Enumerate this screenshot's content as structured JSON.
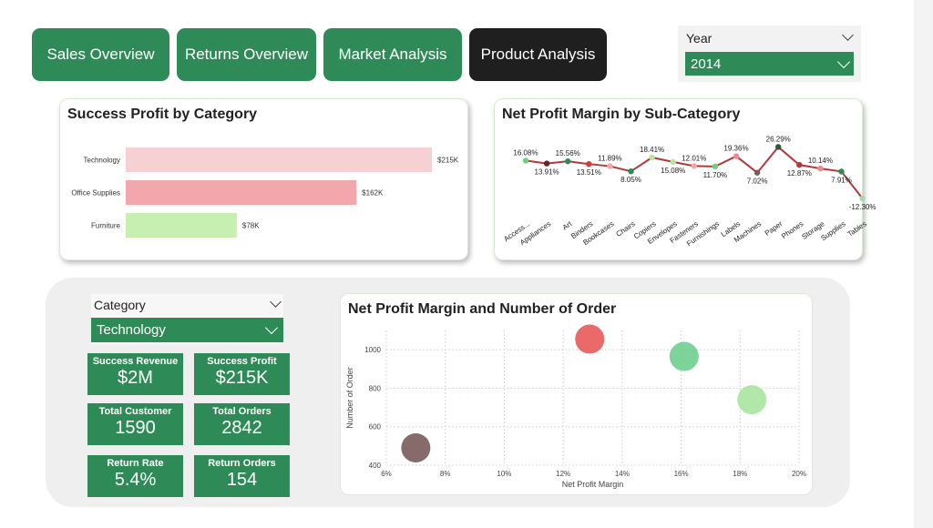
{
  "nav": {
    "tabs": [
      {
        "label": "Sales Overview",
        "active": false
      },
      {
        "label": "Returns Overview",
        "active": false
      },
      {
        "label": "Market Analysis",
        "active": false
      },
      {
        "label": "Product Analysis",
        "active": true
      }
    ]
  },
  "year_slicer": {
    "title": "Year",
    "value": "2014"
  },
  "category_slicer": {
    "title": "Category",
    "value": "Technology"
  },
  "colors": {
    "accent": "#2e8b57",
    "active_tab": "#1f1f1f",
    "line": "#b03a3a"
  },
  "bar_chart": {
    "title": "Success Profit by Category",
    "chart_data": {
      "type": "bar",
      "orientation": "horizontal",
      "categories": [
        "Technology",
        "Office Supplies",
        "Furniture"
      ],
      "values": [
        215,
        162,
        78
      ],
      "value_labels": [
        "$215K",
        "$162K",
        "$78K"
      ],
      "colors": [
        "#f7d0d3",
        "#f2a7ad",
        "#c6efb1"
      ],
      "xlim": [
        0,
        215
      ]
    }
  },
  "line_chart": {
    "title": "Net Profit Margin by Sub-Category",
    "chart_data": {
      "type": "line",
      "categories": [
        "Access...",
        "Appliances",
        "Art",
        "Binders",
        "Bookcases",
        "Chairs",
        "Copiers",
        "Envelopes",
        "Fasteners",
        "Furnishings",
        "Labels",
        "Machines",
        "Paper",
        "Phones",
        "Storage",
        "Supplies",
        "Tables"
      ],
      "values": [
        16.08,
        13.91,
        15.56,
        13.51,
        11.89,
        8.05,
        18.41,
        15.08,
        12.01,
        11.7,
        19.36,
        7.02,
        26.29,
        12.87,
        10.14,
        7.91,
        -12.3
      ],
      "labels": [
        "16.08%",
        "13.91%",
        "15.56%",
        "13.51%",
        "11.89%",
        "8.05%",
        "18.41%",
        "15.08%",
        "12.01%",
        "11.70%",
        "19.36%",
        "7.02%",
        "26.29%",
        "12.87%",
        "10.14%",
        "7.91%",
        "-12.30%"
      ],
      "label_above": [
        true,
        false,
        true,
        false,
        true,
        false,
        true,
        false,
        true,
        false,
        true,
        false,
        true,
        false,
        true,
        false,
        false
      ],
      "point_colors": [
        "#6fcf7f",
        "#6b2222",
        "#2e8b57",
        "#c94040",
        "#f2a7ad",
        "#2e8b57",
        "#b8e6a0",
        "#b8e6a0",
        "#f2a7ad",
        "#6fcf7f",
        "#e88c8c",
        "#7a5a5a",
        "#2a5a3a",
        "#b03a3a",
        "#e88c8c",
        "#2e8b57",
        "#a8d8b0"
      ],
      "ylim": [
        -15,
        30
      ]
    }
  },
  "kpis": [
    {
      "label": "Success Revenue",
      "value": "$2M"
    },
    {
      "label": "Success Profit",
      "value": "$215K"
    },
    {
      "label": "Total Customer",
      "value": "1590"
    },
    {
      "label": "Total Orders",
      "value": "2842"
    },
    {
      "label": "Return Rate",
      "value": "5.4%"
    },
    {
      "label": "Return Orders",
      "value": "154"
    }
  ],
  "scatter": {
    "title": "Net Profit Margin and Number of Order",
    "chart_data": {
      "type": "scatter",
      "xlabel": "Net Profit Margin",
      "ylabel": "Number of Order",
      "xlim": [
        6,
        20
      ],
      "ylim": [
        400,
        1100
      ],
      "x_ticks": [
        "6%",
        "8%",
        "10%",
        "12%",
        "14%",
        "16%",
        "18%",
        "20%"
      ],
      "y_ticks": [
        "400",
        "600",
        "800",
        "1000"
      ],
      "points": [
        {
          "x": 12.9,
          "y": 1055,
          "color": "#e85a5a"
        },
        {
          "x": 16.1,
          "y": 965,
          "color": "#6fcf8f"
        },
        {
          "x": 18.4,
          "y": 740,
          "color": "#a8e6a0"
        },
        {
          "x": 7.0,
          "y": 490,
          "color": "#7a5a5a"
        }
      ],
      "grid": true
    }
  }
}
